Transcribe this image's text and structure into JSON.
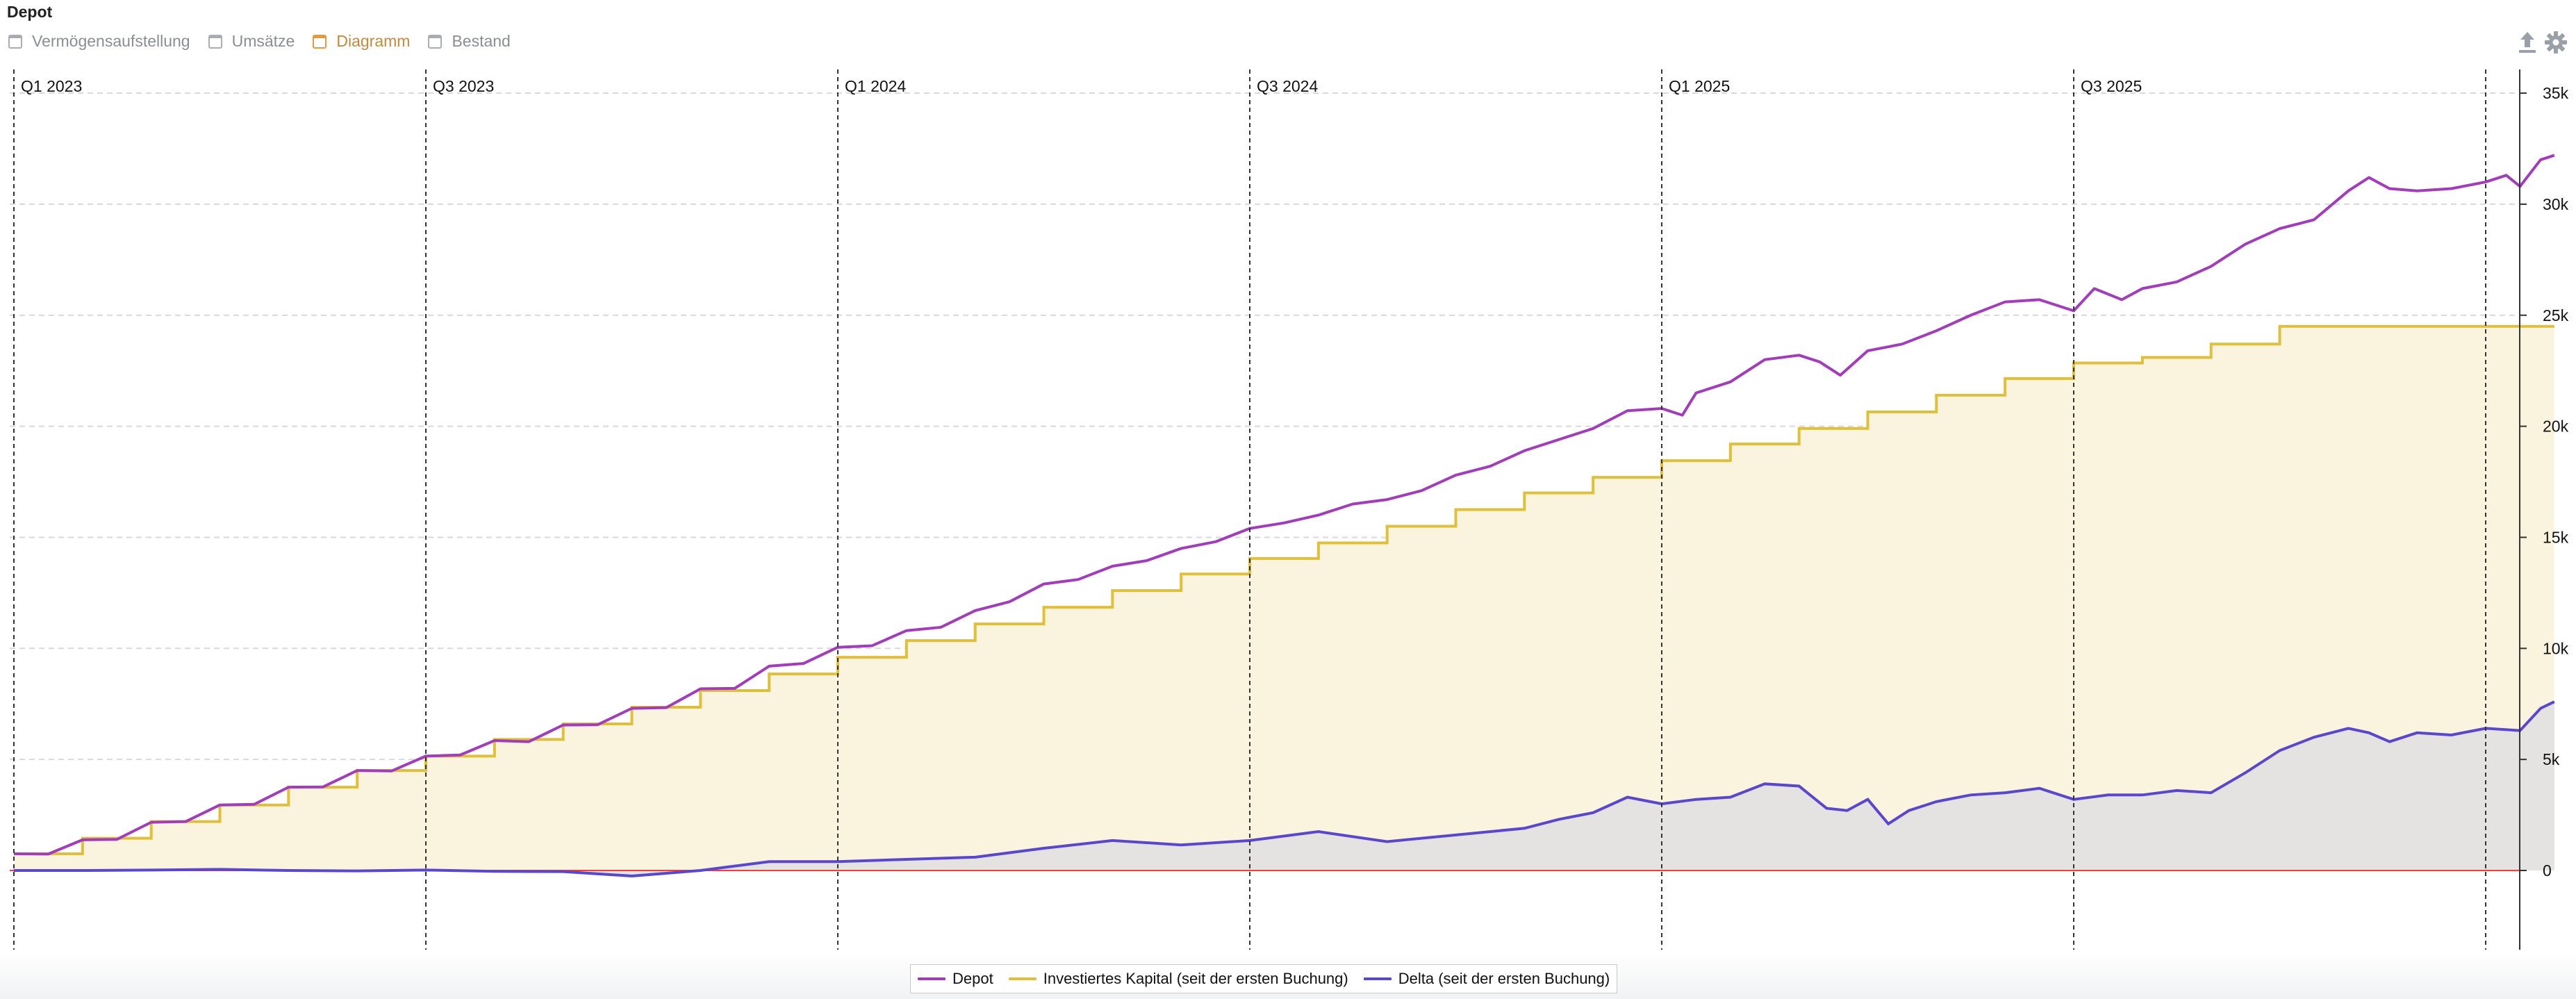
{
  "title": "Depot",
  "tabs": [
    {
      "label": "Vermögensaufstellung",
      "active": false
    },
    {
      "label": "Umsätze",
      "active": false
    },
    {
      "label": "Diagramm",
      "active": true
    },
    {
      "label": "Bestand",
      "active": false
    }
  ],
  "toolbar": {
    "export_icon": "upload-icon",
    "settings_icon": "gear-icon"
  },
  "colors": {
    "depot": "#a23cbc",
    "invested": "#e0bf3a",
    "invested_fill": "#faf3de",
    "delta": "#5a47cf",
    "delta_fill": "#e5e2e2",
    "zero_line": "#e8413f",
    "grid": "#d9d9d9",
    "quarter_line": "#333333"
  },
  "chart_data": {
    "type": "line",
    "title": "Depot",
    "x_range": [
      "2023-01-01",
      "2025-11-30"
    ],
    "ylim": [
      -5000,
      35000
    ],
    "y_ticks": [
      0,
      5000,
      10000,
      15000,
      20000,
      25000,
      30000,
      35000
    ],
    "y_tick_labels": [
      "0",
      "5k",
      "10k",
      "15k",
      "20k",
      "25k",
      "30k",
      "35k"
    ],
    "y_axis_position": "right",
    "quarter_markers": [
      {
        "label": "Q1 2023",
        "month": 0
      },
      {
        "label": "Q3 2023",
        "month": 6
      },
      {
        "label": "Q1 2024",
        "month": 12
      },
      {
        "label": "Q3 2024",
        "month": 18
      },
      {
        "label": "Q1 2025",
        "month": 24
      },
      {
        "label": "Q3 2025",
        "month": 30
      },
      {
        "label": "",
        "month": 36
      }
    ],
    "series": [
      {
        "name": "Depot",
        "key": "depot",
        "points": [
          [
            0,
            750
          ],
          [
            0.5,
            740
          ],
          [
            1,
            1380
          ],
          [
            1.5,
            1400
          ],
          [
            2,
            2170
          ],
          [
            2.5,
            2200
          ],
          [
            3,
            2950
          ],
          [
            3.5,
            2980
          ],
          [
            4,
            3750
          ],
          [
            4.5,
            3760
          ],
          [
            5,
            4500
          ],
          [
            5.5,
            4480
          ],
          [
            6,
            5150
          ],
          [
            6.5,
            5200
          ],
          [
            7,
            5850
          ],
          [
            7.5,
            5800
          ],
          [
            8,
            6550
          ],
          [
            8.5,
            6560
          ],
          [
            9,
            7300
          ],
          [
            9.5,
            7330
          ],
          [
            10,
            8180
          ],
          [
            10.5,
            8200
          ],
          [
            11,
            9200
          ],
          [
            11.5,
            9320
          ],
          [
            12,
            10050
          ],
          [
            12.5,
            10120
          ],
          [
            13,
            10800
          ],
          [
            13.5,
            10950
          ],
          [
            14,
            11700
          ],
          [
            14.5,
            12100
          ],
          [
            15,
            12900
          ],
          [
            15.5,
            13100
          ],
          [
            16,
            13700
          ],
          [
            16.5,
            13950
          ],
          [
            17,
            14500
          ],
          [
            17.5,
            14800
          ],
          [
            18,
            15400
          ],
          [
            18.5,
            15650
          ],
          [
            19,
            16000
          ],
          [
            19.5,
            16500
          ],
          [
            20,
            16700
          ],
          [
            20.5,
            17100
          ],
          [
            21,
            17800
          ],
          [
            21.5,
            18200
          ],
          [
            22,
            18900
          ],
          [
            22.5,
            19400
          ],
          [
            23,
            19900
          ],
          [
            23.5,
            20700
          ],
          [
            24,
            20800
          ],
          [
            24.3,
            20500
          ],
          [
            24.5,
            21500
          ],
          [
            25,
            22000
          ],
          [
            25.5,
            23000
          ],
          [
            26,
            23200
          ],
          [
            26.3,
            22900
          ],
          [
            26.6,
            22300
          ],
          [
            27,
            23400
          ],
          [
            27.5,
            23700
          ],
          [
            28,
            24300
          ],
          [
            28.5,
            25000
          ],
          [
            29,
            25600
          ],
          [
            29.5,
            25700
          ],
          [
            30,
            25200
          ],
          [
            30.3,
            26200
          ],
          [
            30.7,
            25700
          ],
          [
            31,
            26200
          ],
          [
            31.5,
            26500
          ],
          [
            32,
            27200
          ],
          [
            32.5,
            28200
          ],
          [
            33,
            28900
          ],
          [
            33.5,
            29300
          ],
          [
            34,
            30600
          ],
          [
            34.3,
            31200
          ],
          [
            34.6,
            30700
          ],
          [
            35,
            30600
          ],
          [
            35.5,
            30700
          ],
          [
            36,
            31000
          ],
          [
            36.3,
            31300
          ],
          [
            36.5,
            30800
          ],
          [
            36.8,
            32000
          ],
          [
            37,
            32200
          ]
        ]
      },
      {
        "name": "Investiertes Kapital (seit der ersten Buchung)",
        "key": "invested",
        "points": [
          [
            0,
            750
          ],
          [
            1,
            1450
          ],
          [
            2,
            2200
          ],
          [
            3,
            2950
          ],
          [
            4,
            3750
          ],
          [
            5,
            4500
          ],
          [
            6,
            5150
          ],
          [
            7,
            5900
          ],
          [
            8,
            6600
          ],
          [
            9,
            7350
          ],
          [
            10,
            8100
          ],
          [
            11,
            8850
          ],
          [
            12,
            9600
          ],
          [
            13,
            10350
          ],
          [
            14,
            11100
          ],
          [
            15,
            11850
          ],
          [
            16,
            12600
          ],
          [
            17,
            13350
          ],
          [
            18,
            14050
          ],
          [
            19,
            14750
          ],
          [
            20,
            15500
          ],
          [
            21,
            16250
          ],
          [
            22,
            17000
          ],
          [
            23,
            17700
          ],
          [
            24,
            18450
          ],
          [
            25,
            19200
          ],
          [
            26,
            19900
          ],
          [
            27,
            20650
          ],
          [
            28,
            21400
          ],
          [
            29,
            22150
          ],
          [
            30,
            22850
          ],
          [
            31,
            23100
          ],
          [
            32,
            23700
          ],
          [
            33,
            24500
          ],
          [
            37,
            24500
          ]
        ]
      },
      {
        "name": "Delta (seit der ersten Buchung)",
        "key": "delta",
        "points": [
          [
            0,
            0
          ],
          [
            1,
            0
          ],
          [
            2,
            20
          ],
          [
            3,
            50
          ],
          [
            4,
            0
          ],
          [
            5,
            -20
          ],
          [
            6,
            20
          ],
          [
            7,
            -40
          ],
          [
            8,
            -50
          ],
          [
            9,
            -250
          ],
          [
            10,
            0
          ],
          [
            11,
            400
          ],
          [
            12,
            400
          ],
          [
            13,
            500
          ],
          [
            14,
            600
          ],
          [
            15,
            1000
          ],
          [
            16,
            1350
          ],
          [
            17,
            1150
          ],
          [
            18,
            1350
          ],
          [
            19,
            1750
          ],
          [
            20,
            1300
          ],
          [
            21,
            1600
          ],
          [
            22,
            1900
          ],
          [
            22.5,
            2300
          ],
          [
            23,
            2600
          ],
          [
            23.5,
            3300
          ],
          [
            24,
            3000
          ],
          [
            24.5,
            3200
          ],
          [
            25,
            3300
          ],
          [
            25.5,
            3900
          ],
          [
            26,
            3800
          ],
          [
            26.4,
            2800
          ],
          [
            26.7,
            2700
          ],
          [
            27,
            3200
          ],
          [
            27.3,
            2100
          ],
          [
            27.6,
            2700
          ],
          [
            28,
            3100
          ],
          [
            28.5,
            3400
          ],
          [
            29,
            3500
          ],
          [
            29.5,
            3700
          ],
          [
            30,
            3200
          ],
          [
            30.5,
            3400
          ],
          [
            31,
            3400
          ],
          [
            31.5,
            3600
          ],
          [
            32,
            3500
          ],
          [
            32.5,
            4400
          ],
          [
            33,
            5400
          ],
          [
            33.5,
            6000
          ],
          [
            34,
            6400
          ],
          [
            34.3,
            6200
          ],
          [
            34.6,
            5800
          ],
          [
            35,
            6200
          ],
          [
            35.5,
            6100
          ],
          [
            36,
            6400
          ],
          [
            36.5,
            6300
          ],
          [
            36.8,
            7300
          ],
          [
            37,
            7600
          ]
        ]
      }
    ],
    "legend": {
      "position": "bottom-center",
      "entries": [
        "Depot",
        "Investiertes Kapital (seit der ersten Buchung)",
        "Delta (seit der ersten Buchung)"
      ]
    }
  }
}
